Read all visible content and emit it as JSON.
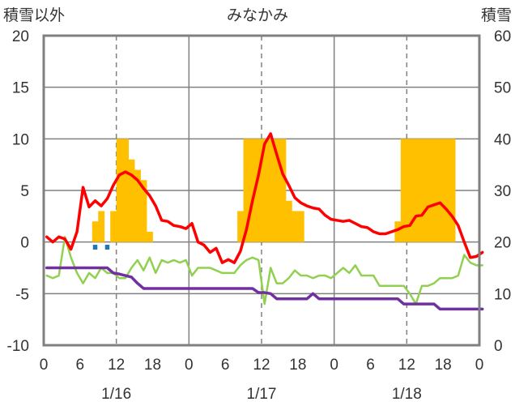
{
  "chart_data": {
    "type": "bar+line",
    "title": "みなかみ",
    "left_axis_label": "積雪以外",
    "right_axis_label": "積雪",
    "y_left": {
      "min": -10,
      "max": 20,
      "ticks": [
        "20",
        "15",
        "10",
        "5",
        "0",
        "-5",
        "-10"
      ]
    },
    "y_right": {
      "min": 0,
      "max": 60,
      "ticks": [
        "60",
        "50",
        "40",
        "30",
        "20",
        "10",
        "0"
      ]
    },
    "x_hours": {
      "min": 0,
      "max": 72
    },
    "x_tick_labels": [
      "0",
      "6",
      "12",
      "18",
      "0",
      "6",
      "12",
      "18",
      "0",
      "6",
      "12",
      "18",
      "0"
    ],
    "date_labels": [
      "1/16",
      "1/17",
      "1/18"
    ],
    "colors": {
      "snowfall": "#FFC000",
      "temperature": "#FF0000",
      "humidity_line": "#92D050",
      "pressure_line": "#7030A0",
      "precip_marks": "#1F77B4",
      "frame": "#808080",
      "grid": "#808080"
    },
    "series": [
      {
        "name": "snowfall",
        "type": "bar",
        "axis": "left",
        "values": [
          0,
          0,
          0,
          0,
          0,
          0,
          0,
          0,
          2,
          3,
          0,
          3,
          10,
          10,
          8,
          7,
          6,
          1,
          0,
          0,
          0,
          0,
          0,
          0,
          0,
          0,
          0,
          0,
          0,
          0,
          0,
          0,
          3,
          10,
          10,
          10,
          10,
          10,
          10,
          10,
          4,
          3,
          3,
          0,
          0,
          0,
          0,
          0,
          0,
          0,
          0,
          0,
          0,
          0,
          0,
          0,
          0,
          0,
          2,
          10,
          10,
          10,
          10,
          10,
          10,
          10,
          10,
          10,
          0,
          0,
          0,
          0,
          0
        ]
      },
      {
        "name": "precipitation-marks",
        "type": "marker",
        "axis": "left",
        "hours": [
          8,
          10
        ],
        "values": [
          -0.5,
          -0.5
        ]
      },
      {
        "name": "temperature",
        "type": "line",
        "axis": "left",
        "values": [
          0.5,
          0,
          0.5,
          0.3,
          -0.7,
          1,
          5.3,
          3.4,
          4,
          3.5,
          4.2,
          5.5,
          6.5,
          6.8,
          6.5,
          6,
          5.2,
          4.5,
          3.5,
          2.1,
          2,
          1.6,
          1.5,
          1.3,
          1.8,
          0,
          -0.3,
          -1,
          -0.6,
          -2,
          -1.7,
          -2,
          -0.9,
          1.2,
          4,
          6.5,
          9.5,
          10.5,
          8.5,
          6.6,
          5.5,
          4.3,
          3.8,
          3.5,
          3.3,
          3.2,
          2.6,
          2.2,
          2.1,
          2,
          2.1,
          1.8,
          1.5,
          1.4,
          1,
          0.8,
          0.8,
          1,
          1.2,
          1.5,
          1.6,
          2.5,
          2.6,
          3.4,
          3.6,
          3.8,
          3.2,
          2.5,
          1.6,
          0,
          -1.5,
          -1.4,
          -1
        ]
      },
      {
        "name": "humidity-line",
        "type": "line",
        "axis": "right",
        "values": [
          13.5,
          13,
          13.5,
          21,
          17,
          14,
          12,
          14,
          13,
          15,
          14,
          14,
          13,
          13,
          15,
          16.5,
          14.5,
          17,
          14,
          16.5,
          16,
          16.5,
          16,
          16.5,
          13.5,
          15,
          15,
          15,
          14.5,
          14,
          14,
          14,
          15.5,
          16.5,
          17,
          16.5,
          8,
          15,
          12,
          12,
          13,
          14.5,
          13.5,
          13.5,
          13,
          13.5,
          13.5,
          13,
          14,
          15,
          14,
          15.5,
          13.5,
          13.5,
          13.5,
          11.5,
          11.5,
          11.5,
          11.5,
          11.5,
          10,
          8,
          11.5,
          11.5,
          12,
          13,
          13,
          13,
          13.5,
          17.5,
          16,
          15.5,
          15.5
        ]
      },
      {
        "name": "pressure-line",
        "type": "line",
        "axis": "right",
        "values": [
          15,
          15,
          15,
          15,
          15,
          15,
          15,
          15,
          15,
          15,
          15,
          14,
          13.8,
          13.5,
          13.2,
          12,
          11,
          11,
          11,
          11,
          11,
          11,
          11,
          11,
          11,
          11,
          11,
          11,
          11,
          11,
          11,
          11,
          11,
          11,
          11,
          10.2,
          10.2,
          10,
          9,
          9,
          9,
          9,
          9,
          9,
          10,
          9,
          9,
          9,
          9,
          9,
          9,
          9,
          9,
          9,
          9,
          9,
          9,
          9,
          9,
          8,
          8,
          8,
          8,
          8,
          8,
          7,
          7,
          7,
          7,
          7,
          7,
          7,
          7
        ]
      }
    ]
  }
}
